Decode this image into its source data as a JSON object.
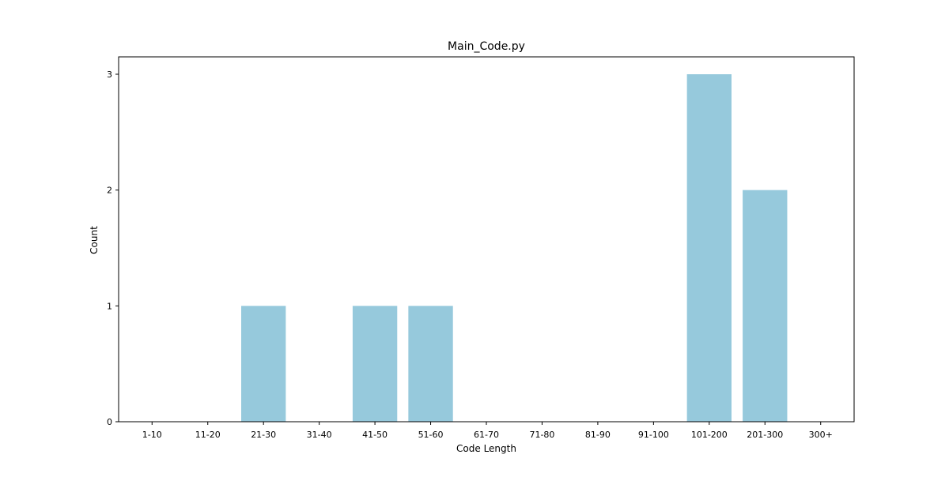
{
  "chart_data": {
    "type": "bar",
    "title": "Main_Code.py",
    "xlabel": "Code Length",
    "ylabel": "Count",
    "categories": [
      "1-10",
      "11-20",
      "21-30",
      "31-40",
      "41-50",
      "51-60",
      "61-70",
      "71-80",
      "81-90",
      "91-100",
      "101-200",
      "201-300",
      "300+"
    ],
    "values": [
      0,
      0,
      1,
      0,
      1,
      1,
      0,
      0,
      0,
      0,
      3,
      2,
      0
    ],
    "ylim": [
      0,
      3.15
    ],
    "yticks": [
      0,
      1,
      2,
      3
    ],
    "grid": false,
    "bar_color": "#96c9dc"
  }
}
